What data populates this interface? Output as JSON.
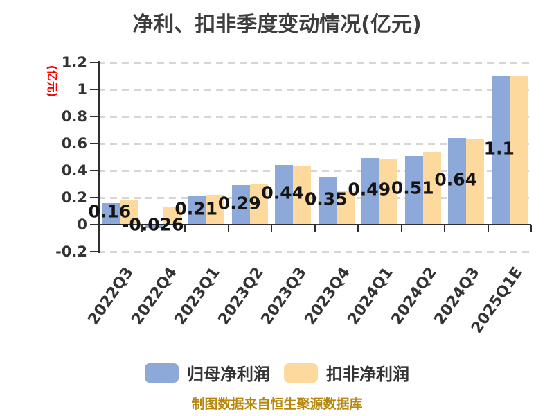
{
  "chart_data": {
    "type": "bar",
    "title": "净利、扣非季度变动情况(亿元)",
    "ylabel": "(亿元)",
    "categories": [
      "2022Q3",
      "2022Q4",
      "2023Q1",
      "2023Q2",
      "2023Q3",
      "2023Q4",
      "2024Q1",
      "2024Q2",
      "2024Q3",
      "2025Q1E"
    ],
    "series": [
      {
        "name": "归母净利润",
        "color": "#8CA9DA",
        "values": [
          0.16,
          -0.026,
          0.21,
          0.29,
          0.44,
          0.35,
          0.49,
          0.51,
          0.64,
          1.1
        ],
        "labels": [
          "0.16",
          "-0.026",
          "0.21",
          "0.29",
          "0.44",
          "0.35",
          "0.49",
          "0.51",
          "0.64",
          "1.1"
        ]
      },
      {
        "name": "扣非净利润",
        "color": "#FDD99E",
        "values": [
          0.18,
          0.13,
          0.22,
          0.3,
          0.43,
          0.25,
          0.48,
          0.54,
          0.63,
          1.1
        ],
        "labels": []
      }
    ],
    "ylim": [
      -0.2,
      1.2
    ],
    "yticks": [
      1.2,
      1,
      0.8,
      0.6,
      0.4,
      0.2,
      0,
      -0.2
    ],
    "grid": "dashed-horizontal",
    "legend_position": "bottom",
    "value_labels_on": "归母净利润",
    "colors": {
      "axis": "#2E2E2E",
      "grid": "#D6D6D6",
      "tick_label": "#333333",
      "data_label": "#141414",
      "title": "#3D3D3D",
      "ylabel": "#FF0000",
      "footer": "#B8860B"
    }
  },
  "footer": {
    "source_note": "制图数据来自恒生聚源数据库"
  }
}
